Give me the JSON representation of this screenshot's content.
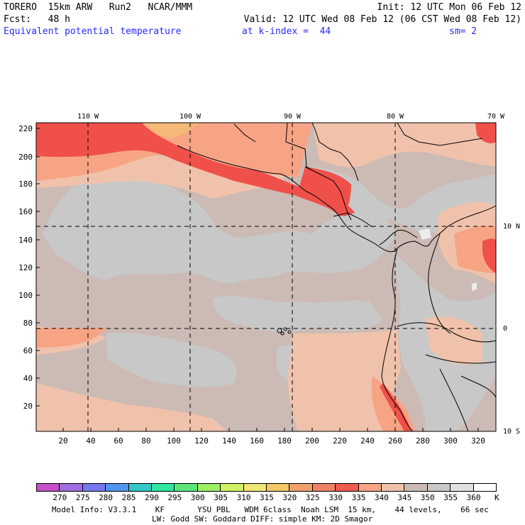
{
  "header": {
    "line1_left": "TORERO  15km ARW   Run2   NCAR/MMM",
    "line1_right": "Init: 12 UTC Mon 06 Feb 12",
    "line2_left": "Fcst:   48 h",
    "line2_right": "Valid: 12 UTC Wed 08 Feb 12 (06 CST Wed 08 Feb 12)",
    "field_name": "Equivalent potential temperature",
    "level": "at k-index =  44",
    "smoothing": "sm= 2"
  },
  "map": {
    "top_lon_labels": [
      "110 W",
      "100 W",
      "90 W",
      "80 W",
      "70 W"
    ],
    "right_lat_labels": [
      "10 N",
      "0",
      "10 S"
    ],
    "y_ticks": [
      "220",
      "200",
      "180",
      "160",
      "140",
      "120",
      "100",
      "80",
      "60",
      "40",
      "20"
    ],
    "x_ticks": [
      "20",
      "40",
      "60",
      "80",
      "100",
      "120",
      "140",
      "160",
      "180",
      "200",
      "220",
      "240",
      "260",
      "280",
      "300",
      "320"
    ],
    "colors": {
      "grey": "#c8c8c8",
      "warm_grey": "#ccbab4",
      "peach": "#f0c2ac",
      "salmon": "#f7a485",
      "red_orange": "#f76858",
      "red": "#f0504a",
      "orange": "#f4b878",
      "white_patch": "#ececec"
    }
  },
  "colorbar": {
    "labels": [
      "270",
      "275",
      "280",
      "285",
      "290",
      "295",
      "300",
      "305",
      "310",
      "315",
      "320",
      "325",
      "330",
      "335",
      "340",
      "345",
      "350",
      "355",
      "360"
    ],
    "unit": "K",
    "colors": [
      "#c850c8",
      "#a06ee0",
      "#7878f0",
      "#5096f0",
      "#32c8c8",
      "#32e6a0",
      "#5ae678",
      "#9bf064",
      "#d2f064",
      "#f0e678",
      "#f0c864",
      "#f0a06e",
      "#f08064",
      "#f05a50",
      "#f7a485",
      "#f0c2ac",
      "#ccbab4",
      "#c8c8c8",
      "#e0e0e0",
      "#ffffff"
    ]
  },
  "footer": {
    "line1": "Model Info: V3.3.1    KF       YSU PBL   WDM 6class  Noah LSM  15 km,    44 levels,    66 sec",
    "line2": "LW: Godd SW: Goddard DIFF: simple KM: 2D Smagor"
  }
}
